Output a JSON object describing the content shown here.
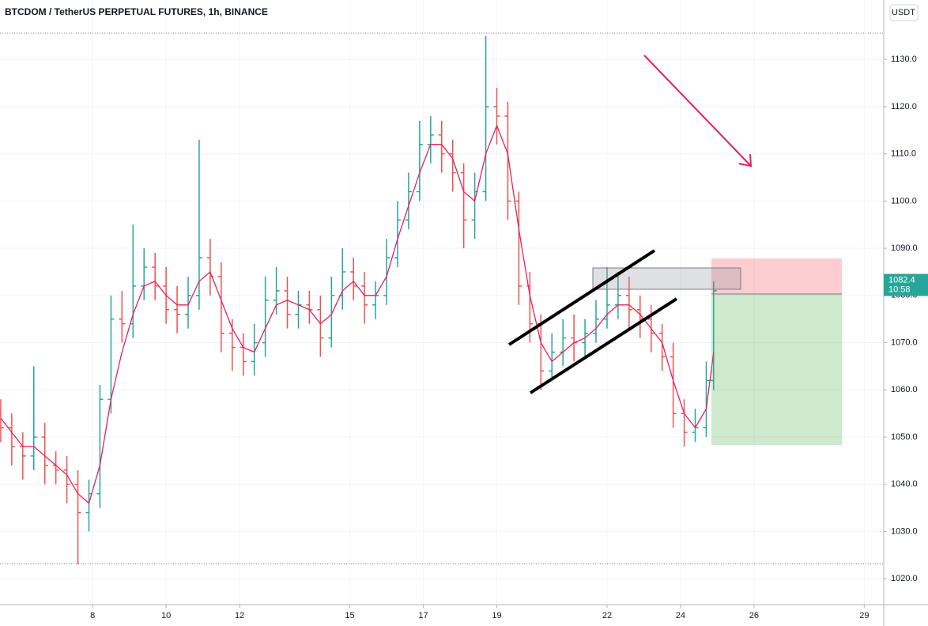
{
  "chart_data": {
    "type": "ohlc",
    "title": "BTCDOM / TetherUS PERPETUAL FUTURES, 1h, BINANCE",
    "currency": "USDT",
    "up_color": "#26a69a",
    "down_color": "#ef5350",
    "x": [
      5.5,
      5.8,
      6.1,
      6.4,
      6.7,
      7.0,
      7.3,
      7.6,
      7.9,
      8.2,
      8.5,
      8.8,
      9.1,
      9.4,
      9.7,
      10.0,
      10.3,
      10.6,
      10.9,
      11.2,
      11.5,
      11.8,
      12.1,
      12.4,
      12.7,
      13.0,
      13.3,
      13.6,
      13.9,
      14.2,
      14.5,
      14.8,
      15.1,
      15.4,
      15.7,
      16.0,
      16.3,
      16.6,
      16.9,
      17.2,
      17.5,
      17.8,
      18.1,
      18.4,
      18.7,
      19.0,
      19.3,
      19.6,
      19.9,
      20.2,
      20.5,
      20.8,
      21.1,
      21.4,
      21.7,
      22.0,
      22.3,
      22.6,
      22.9,
      23.2,
      23.5,
      23.8,
      24.1,
      24.4,
      24.7,
      24.9
    ],
    "open": [
      1055,
      1052,
      1048,
      1046,
      1050,
      1044,
      1043,
      1040,
      1034,
      1038,
      1058,
      1075,
      1074,
      1082,
      1086,
      1082,
      1077,
      1076,
      1080,
      1088,
      1084,
      1072,
      1069,
      1066,
      1070,
      1079,
      1081,
      1076,
      1078,
      1077,
      1071,
      1080,
      1085,
      1082,
      1078,
      1080,
      1088,
      1096,
      1102,
      1112,
      1114,
      1110,
      1106,
      1096,
      1102,
      1120,
      1118,
      1100,
      1082,
      1074,
      1064,
      1068,
      1071,
      1070,
      1072,
      1075,
      1078,
      1080,
      1077,
      1075,
      1072,
      1067,
      1055,
      1051,
      1052,
      1062
    ],
    "high": [
      1058,
      1055,
      1051,
      1065,
      1053,
      1047,
      1046,
      1043,
      1041,
      1061,
      1080,
      1081,
      1095,
      1090,
      1089,
      1086,
      1082,
      1084,
      1113,
      1092,
      1087,
      1075,
      1072,
      1074,
      1084,
      1086,
      1084,
      1081,
      1081,
      1080,
      1084,
      1090,
      1088,
      1085,
      1083,
      1092,
      1100,
      1106,
      1117,
      1118,
      1117,
      1113,
      1108,
      1106,
      1135,
      1124,
      1121,
      1102,
      1085,
      1076,
      1072,
      1075,
      1076,
      1075,
      1079,
      1086,
      1085,
      1084,
      1080,
      1078,
      1074,
      1070,
      1058,
      1056,
      1066,
      1083
    ],
    "low": [
      1049,
      1044,
      1041,
      1043,
      1040,
      1040,
      1036,
      1023,
      1030,
      1035,
      1055,
      1070,
      1071,
      1079,
      1079,
      1074,
      1072,
      1073,
      1077,
      1080,
      1068,
      1064,
      1063,
      1063,
      1067,
      1076,
      1073,
      1073,
      1074,
      1067,
      1069,
      1077,
      1079,
      1074,
      1075,
      1078,
      1086,
      1094,
      1100,
      1108,
      1106,
      1102,
      1090,
      1092,
      1100,
      1112,
      1096,
      1078,
      1070,
      1060,
      1062,
      1065,
      1066,
      1067,
      1070,
      1073,
      1075,
      1073,
      1071,
      1068,
      1064,
      1052,
      1048,
      1049,
      1050,
      1060
    ],
    "close": [
      1052,
      1048,
      1046,
      1050,
      1044,
      1043,
      1040,
      1034,
      1038,
      1058,
      1075,
      1074,
      1082,
      1086,
      1082,
      1077,
      1076,
      1080,
      1088,
      1084,
      1072,
      1069,
      1066,
      1070,
      1079,
      1081,
      1076,
      1078,
      1077,
      1071,
      1080,
      1085,
      1082,
      1078,
      1080,
      1088,
      1096,
      1102,
      1112,
      1114,
      1110,
      1106,
      1096,
      1102,
      1120,
      1118,
      1100,
      1082,
      1074,
      1064,
      1068,
      1071,
      1070,
      1072,
      1075,
      1078,
      1080,
      1077,
      1075,
      1072,
      1067,
      1055,
      1051,
      1052,
      1062,
      1081
    ],
    "overlay": {
      "color": "#e91e63",
      "values": [
        1054,
        1051,
        1048,
        1048,
        1046,
        1044,
        1042,
        1038,
        1036,
        1044,
        1058,
        1068,
        1076,
        1082,
        1083,
        1080,
        1078,
        1078,
        1083,
        1085,
        1079,
        1073,
        1069,
        1068,
        1073,
        1078,
        1079,
        1078,
        1077,
        1074,
        1076,
        1081,
        1083,
        1080,
        1080,
        1084,
        1092,
        1099,
        1106,
        1112,
        1112,
        1109,
        1102,
        1100,
        1110,
        1116,
        1110,
        1094,
        1080,
        1070,
        1066,
        1068,
        1070,
        1071,
        1073,
        1076,
        1078,
        1078,
        1076,
        1073,
        1070,
        1062,
        1055,
        1052,
        1056,
        1068
      ]
    },
    "last_price": 1082.4,
    "countdown": "10:58",
    "last_price_color": "#26a69a",
    "xlim": [
      5.48,
      29.53
    ],
    "xticks": [
      8,
      10,
      12,
      15,
      17,
      19,
      22,
      24,
      26,
      29
    ],
    "ylim": [
      1014.5,
      1142.6
    ],
    "yticks": [
      {
        "value": 1020,
        "label": "1020.0"
      },
      {
        "value": 1030,
        "label": "1030.0"
      },
      {
        "value": 1040,
        "label": "1040.0"
      },
      {
        "value": 1050,
        "label": "1050.0"
      },
      {
        "value": 1060,
        "label": "1060.0"
      },
      {
        "value": 1070,
        "label": "1070.0"
      },
      {
        "value": 1080,
        "label": "1080.0"
      },
      {
        "value": 1090,
        "label": "1090.0"
      },
      {
        "value": 1100,
        "label": "1100.0"
      },
      {
        "value": 1110,
        "label": "1110.0"
      },
      {
        "value": 1120,
        "label": "1120.0"
      },
      {
        "value": 1130,
        "label": "1130.0"
      }
    ],
    "grid": true
  }
}
